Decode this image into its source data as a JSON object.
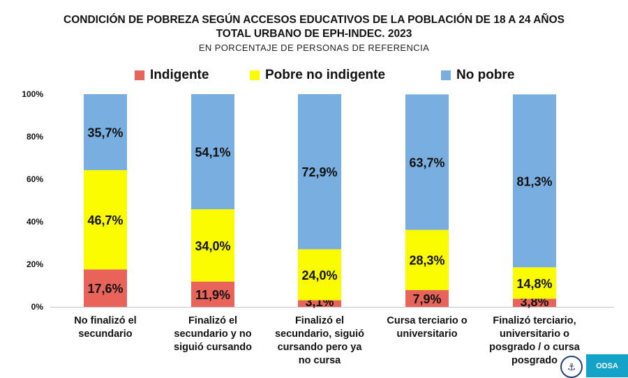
{
  "title_line1": "CONDICIÓN DE POBREZA SEGÚN ACCESOS EDUCATIVOS DE LA POBLACIÓN DE 18 A 24 AÑOS",
  "title_line2": "TOTAL URBANO DE EPH-INDEC. 2023",
  "subtitle": "EN PORCENTAJE DE PERSONAS DE REFERENCIA",
  "colors": {
    "indigente": "#e8645a",
    "pobre": "#fbfb00",
    "nopobre": "#78aee0"
  },
  "logo_text": "ODSA",
  "seal_icon": "university-seal-icon",
  "chart_data": {
    "type": "bar",
    "stacked": true,
    "categories": [
      [
        "No finalizó el",
        "secundario"
      ],
      [
        "Finalizó el",
        "secundario y no",
        "siguió cursando"
      ],
      [
        "Finalizó el",
        "secundario, siguió",
        "cursando pero ya",
        "no cursa"
      ],
      [
        "Cursa terciario o",
        "universitario"
      ],
      [
        "Finalizó terciario,",
        "universitario o",
        "posgrado / o cursa",
        "posgrado"
      ]
    ],
    "series": [
      {
        "name": "Indigente",
        "values": [
          17.6,
          11.9,
          3.1,
          7.9,
          3.8
        ],
        "labels": [
          "17,6%",
          "11,9%",
          "3,1%",
          "7,9%",
          "3,8%"
        ]
      },
      {
        "name": "Pobre no indigente",
        "values": [
          46.7,
          34.0,
          24.0,
          28.3,
          14.8
        ],
        "labels": [
          "46,7%",
          "34,0%",
          "24,0%",
          "28,3%",
          "14,8%"
        ]
      },
      {
        "name": "No pobre",
        "values": [
          35.7,
          54.1,
          72.9,
          63.7,
          81.3
        ],
        "labels": [
          "35,7%",
          "54,1%",
          "72,9%",
          "63,7%",
          "81,3%"
        ]
      }
    ],
    "yticks": [
      "0%",
      "20%",
      "40%",
      "60%",
      "80%",
      "100%"
    ],
    "ylim": [
      0,
      100
    ],
    "legend_position": "top",
    "grid": false
  }
}
